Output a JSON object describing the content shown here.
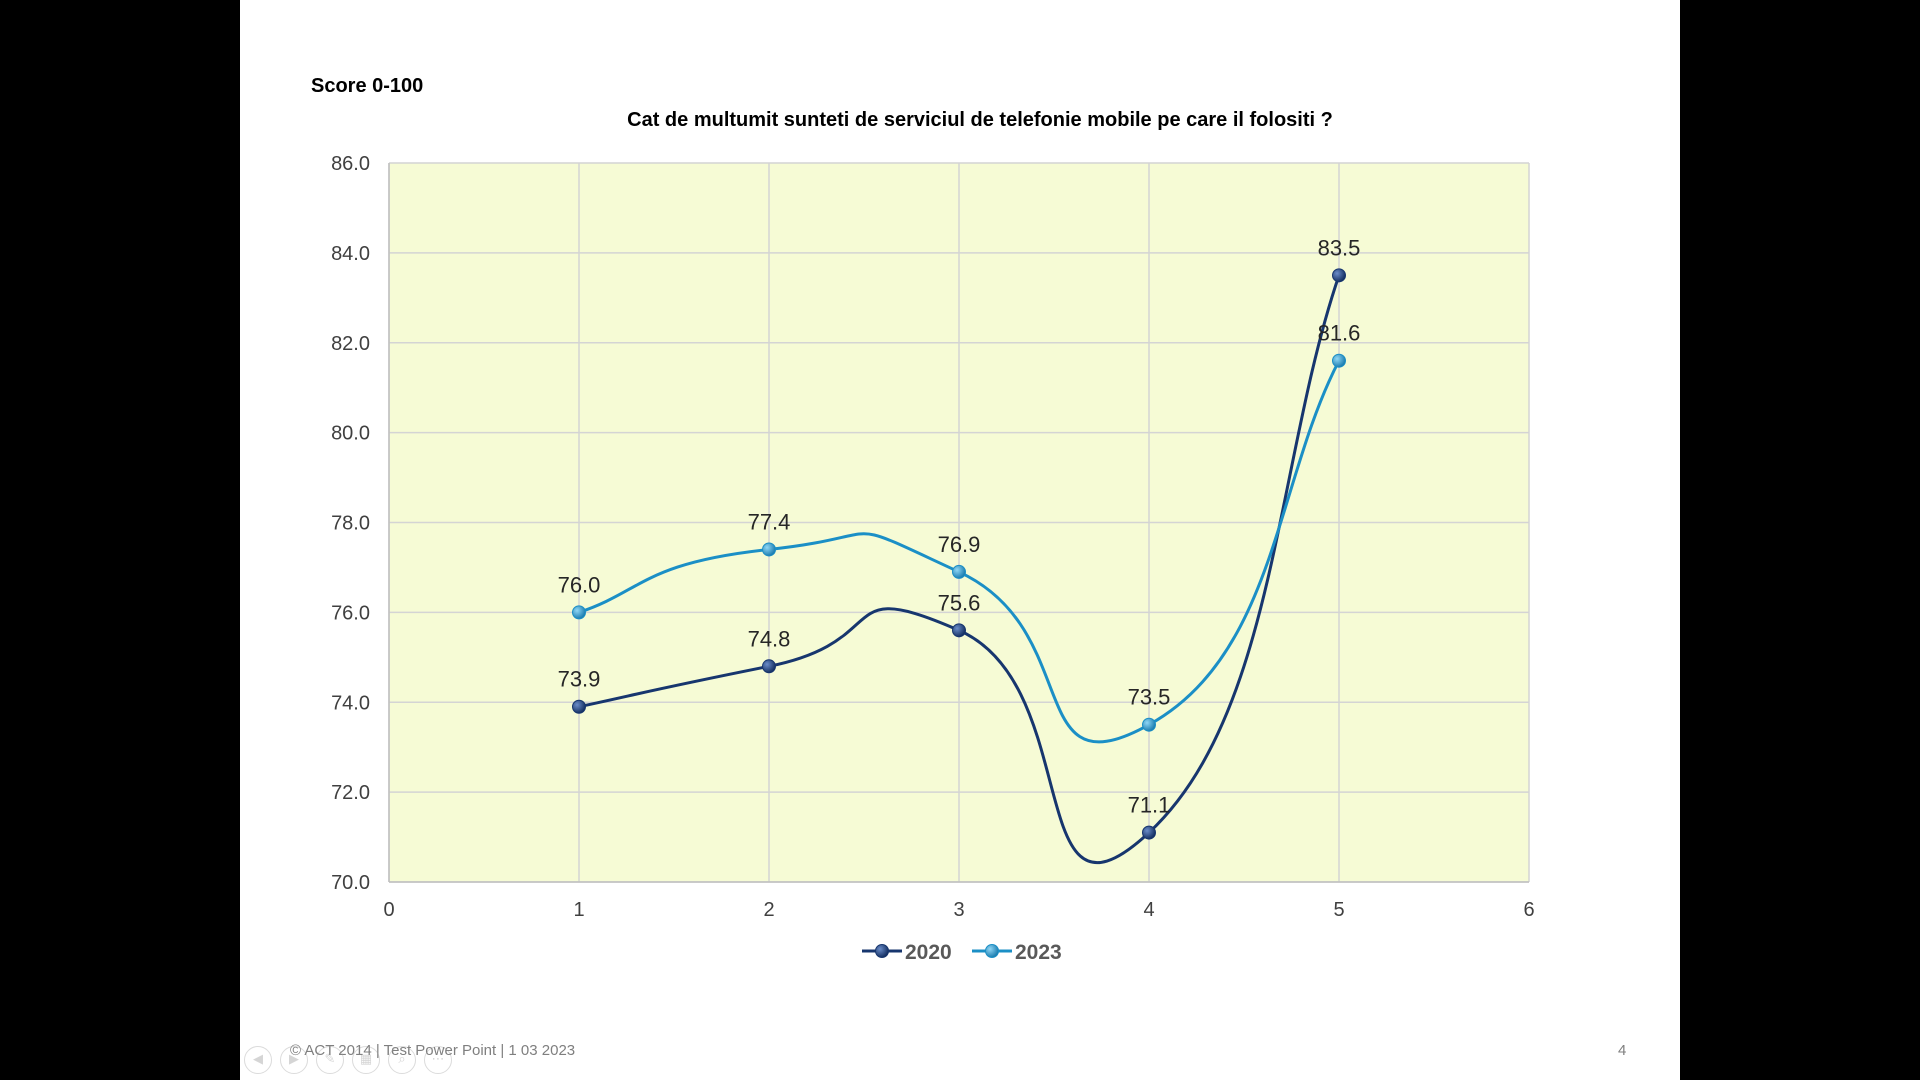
{
  "slide": {
    "score_label": "Score 0-100",
    "title": "Cat de multumit sunteti de serviciul de telefonie mobile pe care il folositi ?",
    "footer": "© ACT 2014 | Test Power Point | 1 03 2023",
    "page_number": "4"
  },
  "nav_icons": [
    "back-icon",
    "forward-icon",
    "pen-icon",
    "slides-icon",
    "zoom-icon",
    "more-icon"
  ],
  "chart_data": {
    "type": "line",
    "smooth": true,
    "title": "Cat de multumit sunteti de serviciul de telefonie mobile pe care il folositi ?",
    "xlabel": "",
    "ylabel": "",
    "xlim": [
      0,
      6
    ],
    "ylim": [
      70,
      86
    ],
    "x_ticks": [
      "0",
      "1",
      "2",
      "3",
      "4",
      "5",
      "6"
    ],
    "y_ticks": [
      "70.0",
      "72.0",
      "74.0",
      "76.0",
      "78.0",
      "80.0",
      "82.0",
      "84.0",
      "86.0"
    ],
    "grid": true,
    "plot_background": "#f6fbd5",
    "legend_position": "bottom",
    "series": [
      {
        "name": "2020",
        "color": "#17366e",
        "x": [
          1,
          2,
          3,
          4,
          5
        ],
        "values": [
          73.9,
          74.8,
          75.6,
          71.1,
          83.5
        ],
        "labels": [
          "73.9",
          "74.8",
          "75.6",
          "71.1",
          "83.5"
        ]
      },
      {
        "name": "2023",
        "color": "#1b8fc6",
        "x": [
          1,
          2,
          3,
          4,
          5
        ],
        "values": [
          76.0,
          77.4,
          76.9,
          73.5,
          81.6
        ],
        "labels": [
          "76.0",
          "77.4",
          "76.9",
          "73.5",
          "81.6"
        ]
      }
    ]
  }
}
